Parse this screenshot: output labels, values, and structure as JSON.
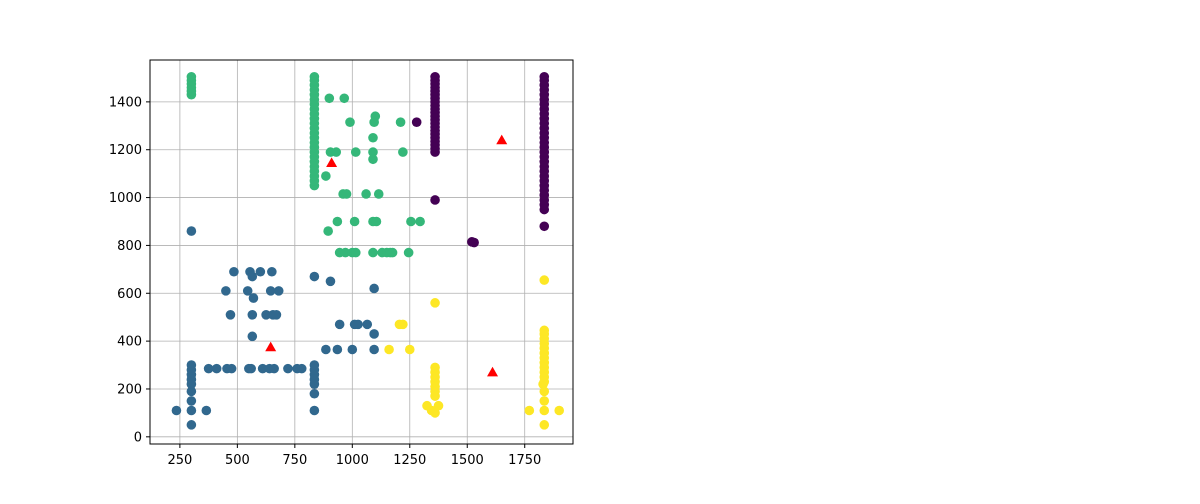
{
  "chart_data": {
    "type": "scatter",
    "title": "",
    "xlabel": "",
    "ylabel": "",
    "xlim": [
      120,
      1960
    ],
    "ylim": [
      -30,
      1575
    ],
    "x_ticks": [
      250,
      500,
      750,
      1000,
      1250,
      1500,
      1750
    ],
    "y_ticks": [
      0,
      200,
      400,
      600,
      800,
      1000,
      1200,
      1400
    ],
    "grid": true,
    "legend": "none",
    "series": [
      {
        "color": "#440154",
        "marker": "circle",
        "points": [
          [
            1360,
            1190
          ],
          [
            1360,
            1205
          ],
          [
            1360,
            1220
          ],
          [
            1360,
            1235
          ],
          [
            1360,
            1250
          ],
          [
            1360,
            1265
          ],
          [
            1360,
            1280
          ],
          [
            1360,
            1295
          ],
          [
            1360,
            1310
          ],
          [
            1360,
            1325
          ],
          [
            1360,
            1340
          ],
          [
            1360,
            1355
          ],
          [
            1360,
            1370
          ],
          [
            1360,
            1385
          ],
          [
            1360,
            1400
          ],
          [
            1360,
            1415
          ],
          [
            1360,
            1430
          ],
          [
            1360,
            1445
          ],
          [
            1360,
            1460
          ],
          [
            1360,
            1475
          ],
          [
            1360,
            1490
          ],
          [
            1360,
            1505
          ],
          [
            1360,
            990
          ],
          [
            1280,
            1315
          ],
          [
            1520,
            815
          ],
          [
            1530,
            812
          ],
          [
            1835,
            950
          ],
          [
            1835,
            970
          ],
          [
            1835,
            990
          ],
          [
            1835,
            1010
          ],
          [
            1835,
            1030
          ],
          [
            1835,
            1050
          ],
          [
            1835,
            1070
          ],
          [
            1835,
            1090
          ],
          [
            1835,
            1110
          ],
          [
            1835,
            1130
          ],
          [
            1835,
            1150
          ],
          [
            1835,
            1170
          ],
          [
            1835,
            1190
          ],
          [
            1835,
            1210
          ],
          [
            1835,
            1230
          ],
          [
            1835,
            1250
          ],
          [
            1835,
            1270
          ],
          [
            1835,
            1290
          ],
          [
            1835,
            1310
          ],
          [
            1835,
            1330
          ],
          [
            1835,
            1350
          ],
          [
            1835,
            1370
          ],
          [
            1835,
            1390
          ],
          [
            1835,
            1410
          ],
          [
            1835,
            1430
          ],
          [
            1835,
            1450
          ],
          [
            1835,
            1470
          ],
          [
            1835,
            1490
          ],
          [
            1835,
            1505
          ],
          [
            1835,
            880
          ]
        ]
      },
      {
        "color": "#31688e",
        "marker": "circle",
        "points": [
          [
            235,
            110
          ],
          [
            300,
            50
          ],
          [
            300,
            110
          ],
          [
            300,
            150
          ],
          [
            300,
            190
          ],
          [
            300,
            220
          ],
          [
            300,
            240
          ],
          [
            300,
            260
          ],
          [
            300,
            280
          ],
          [
            300,
            300
          ],
          [
            300,
            860
          ],
          [
            365,
            110
          ],
          [
            375,
            285
          ],
          [
            410,
            285
          ],
          [
            455,
            285
          ],
          [
            475,
            285
          ],
          [
            450,
            610
          ],
          [
            470,
            510
          ],
          [
            485,
            690
          ],
          [
            545,
            610
          ],
          [
            550,
            285
          ],
          [
            560,
            285
          ],
          [
            555,
            690
          ],
          [
            565,
            670
          ],
          [
            570,
            580
          ],
          [
            565,
            510
          ],
          [
            565,
            420
          ],
          [
            600,
            690
          ],
          [
            610,
            285
          ],
          [
            625,
            510
          ],
          [
            640,
            285
          ],
          [
            645,
            610
          ],
          [
            650,
            690
          ],
          [
            655,
            510
          ],
          [
            660,
            285
          ],
          [
            670,
            510
          ],
          [
            680,
            610
          ],
          [
            720,
            285
          ],
          [
            760,
            285
          ],
          [
            780,
            285
          ],
          [
            835,
            110
          ],
          [
            835,
            180
          ],
          [
            835,
            220
          ],
          [
            835,
            240
          ],
          [
            835,
            260
          ],
          [
            835,
            280
          ],
          [
            835,
            300
          ],
          [
            835,
            670
          ],
          [
            885,
            365
          ],
          [
            905,
            650
          ],
          [
            935,
            365
          ],
          [
            945,
            470
          ],
          [
            1000,
            365
          ],
          [
            1010,
            470
          ],
          [
            1025,
            470
          ],
          [
            1065,
            470
          ],
          [
            1095,
            365
          ],
          [
            1095,
            430
          ],
          [
            1095,
            620
          ]
        ]
      },
      {
        "color": "#35b779",
        "marker": "circle",
        "points": [
          [
            300,
            1430
          ],
          [
            300,
            1445
          ],
          [
            300,
            1460
          ],
          [
            300,
            1475
          ],
          [
            300,
            1490
          ],
          [
            300,
            1505
          ],
          [
            835,
            1050
          ],
          [
            835,
            1070
          ],
          [
            835,
            1090
          ],
          [
            835,
            1110
          ],
          [
            835,
            1130
          ],
          [
            835,
            1150
          ],
          [
            835,
            1170
          ],
          [
            835,
            1190
          ],
          [
            835,
            1210
          ],
          [
            835,
            1230
          ],
          [
            835,
            1250
          ],
          [
            835,
            1270
          ],
          [
            835,
            1290
          ],
          [
            835,
            1310
          ],
          [
            835,
            1330
          ],
          [
            835,
            1350
          ],
          [
            835,
            1370
          ],
          [
            835,
            1390
          ],
          [
            835,
            1410
          ],
          [
            835,
            1430
          ],
          [
            835,
            1450
          ],
          [
            835,
            1470
          ],
          [
            835,
            1490
          ],
          [
            835,
            1505
          ],
          [
            885,
            1090
          ],
          [
            895,
            860
          ],
          [
            900,
            1415
          ],
          [
            905,
            1190
          ],
          [
            930,
            1190
          ],
          [
            935,
            900
          ],
          [
            945,
            770
          ],
          [
            960,
            1015
          ],
          [
            965,
            1415
          ],
          [
            970,
            770
          ],
          [
            975,
            1015
          ],
          [
            990,
            1315
          ],
          [
            1000,
            770
          ],
          [
            1010,
            900
          ],
          [
            1015,
            1190
          ],
          [
            1015,
            770
          ],
          [
            1060,
            1015
          ],
          [
            1090,
            1250
          ],
          [
            1090,
            1190
          ],
          [
            1090,
            1160
          ],
          [
            1090,
            900
          ],
          [
            1090,
            770
          ],
          [
            1095,
            1315
          ],
          [
            1100,
            1340
          ],
          [
            1105,
            900
          ],
          [
            1115,
            1015
          ],
          [
            1130,
            770
          ],
          [
            1150,
            770
          ],
          [
            1165,
            770
          ],
          [
            1175,
            770
          ],
          [
            1210,
            1315
          ],
          [
            1220,
            1190
          ],
          [
            1245,
            770
          ],
          [
            1255,
            900
          ],
          [
            1295,
            900
          ]
        ]
      },
      {
        "color": "#fde725",
        "marker": "circle",
        "points": [
          [
            1160,
            365
          ],
          [
            1205,
            470
          ],
          [
            1220,
            470
          ],
          [
            1250,
            365
          ],
          [
            1325,
            130
          ],
          [
            1345,
            110
          ],
          [
            1360,
            100
          ],
          [
            1375,
            130
          ],
          [
            1360,
            170
          ],
          [
            1360,
            190
          ],
          [
            1360,
            210
          ],
          [
            1360,
            230
          ],
          [
            1360,
            250
          ],
          [
            1360,
            270
          ],
          [
            1360,
            290
          ],
          [
            1360,
            560
          ],
          [
            1770,
            110
          ],
          [
            1830,
            220
          ],
          [
            1835,
            50
          ],
          [
            1835,
            110
          ],
          [
            1835,
            150
          ],
          [
            1835,
            190
          ],
          [
            1835,
            230
          ],
          [
            1835,
            250
          ],
          [
            1835,
            270
          ],
          [
            1835,
            290
          ],
          [
            1835,
            310
          ],
          [
            1835,
            330
          ],
          [
            1835,
            350
          ],
          [
            1835,
            370
          ],
          [
            1835,
            390
          ],
          [
            1835,
            410
          ],
          [
            1835,
            430
          ],
          [
            1835,
            445
          ],
          [
            1835,
            655
          ],
          [
            1900,
            110
          ]
        ]
      },
      {
        "color": "#ff0000",
        "marker": "triangle",
        "points": [
          [
            645,
            375
          ],
          [
            910,
            1145
          ],
          [
            1610,
            270
          ],
          [
            1650,
            1240
          ]
        ]
      }
    ]
  }
}
